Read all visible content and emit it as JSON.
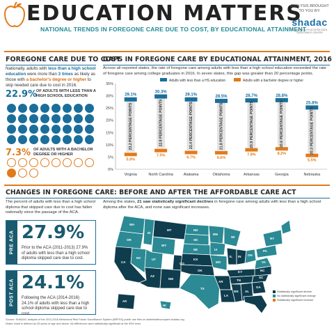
{
  "header": {
    "title": "EDUCATION MATTERS",
    "subtitle": "NATIONAL TRENDS IN FOREGONE CARE DUE TO COST, BY EDUCATIONAL ATTAINMENT",
    "brought_by": "ANALYSIS BROUGHT TO YOU BY:",
    "logo_name": "shadac",
    "logo_tagline": "STATE HEALTH ACCESS DATA ASSISTANCE CENTER"
  },
  "left_panel": {
    "title": "FOREGONE CARE DUE TO COST",
    "text_1": "Nationally, adults with ",
    "text_hl1": "less than a high school education",
    "text_2": " were more than ",
    "text_hl2": "3 times",
    "text_3": " as likely as those with ",
    "text_hl3": "a bachelor's degree or higher",
    "text_4": " to skip needed care due to cost in 2016.",
    "stat_lhs_value": "22.9%",
    "stat_lhs_label": "OF ADULTS WITH LESS THAN A HIGH SCHOOL EDUCATION",
    "stat_ba_value": "7.3%",
    "stat_ba_label": "OF ADULTS WITH A BACHELOR DEGREE OR HIGHER",
    "colors": {
      "blue": "#1b6e9a",
      "orange": "#e07b1c"
    }
  },
  "gaps_panel": {
    "title": "GAPS IN FOREGONE CARE BY EDUCATIONAL ATTAINMENT, 2016",
    "description": "Across all reported states, the rate of foregone care among adults with less than a high school education exceeded the rate of foregone care among college graduates in 2016. In seven states, this gap was greater than 20 percentage points."
  },
  "chart_data": {
    "type": "bar",
    "categories": [
      "Virginia",
      "North Carolina",
      "Alabama",
      "Oklahoma",
      "Arkansas",
      "Georgia",
      "Nebraska"
    ],
    "series": [
      {
        "name": "Adults with less than a HS education",
        "values": [
          29.1,
          30.3,
          29.1,
          28.5,
          28.7,
          28.8,
          25.8
        ],
        "labels": [
          "29.1%",
          "30.3%",
          "29.1%",
          "28.5%",
          "28.7%",
          "28.8%",
          "25.8%"
        ],
        "color": "#1b6e9a"
      },
      {
        "name": "Adults with a bachelor degree or higher",
        "values": [
          5.9,
          7.5,
          6.7,
          6.6,
          7.8,
          8.2,
          5.5
        ],
        "labels": [
          "5.9%",
          "7.5%",
          "6.7%",
          "6.6%",
          "7.8%",
          "8.2%",
          "5.5%"
        ],
        "color": "#e07b1c"
      }
    ],
    "gaps": [
      "23.2 PERCENTAGE POINTS",
      "22.8 PERCENTAGE POINTS",
      "22.4 PERCENTAGE POINTS",
      "21.8 PERCENTAGE POINTS",
      "20.9 PERCENTAGE POINTS",
      "20.6 PERCENTAGE POINTS",
      "20.3 PERCENTAGE POINTS"
    ],
    "yticks": [
      "0%",
      "5%",
      "10%",
      "15%",
      "20%",
      "25%",
      "30%",
      "35%"
    ],
    "ylim": [
      0,
      35
    ],
    "legend_position": "top"
  },
  "changes_panel": {
    "title": "CHANGES IN FOREGONE CARE: BEFORE AND AFTER THE AFFORDABLE CARE ACT",
    "left_text": "The percent of adults with less than a high school diploma that skipped care due to cost has fallen nationally since the passage of the ACA.",
    "pre_label": "PRE ACA",
    "pre_value": "27.9%",
    "pre_desc": "Prior to the ACA (2011-2013) 27.9% of adults with less than a high school diploma skipped care due to cost.",
    "post_label": "POST ACA",
    "post_value": "24.1%",
    "post_desc": "Following the ACA (2014-2016) 24.1% of adults with less than a high school diploma skipped care due to cost.",
    "map_text_1": "Among the states, ",
    "map_text_hl": "21 saw statistically significant declines",
    "map_text_2": " in foregone care among adults with less than a high school diploma after the ACA, and none saw significant increases.",
    "map_legend": [
      "Statistically significant decline",
      "No statistically significant change",
      "Statistically significant increase"
    ],
    "map_colors": {
      "decline": "#0f3d4d",
      "no_change": "#2b8a94",
      "increase": "#e07b1c"
    }
  },
  "footer": {
    "source": "Source: SHADAC analysis of the 2011-2016 Behavioral Risk Factor Surveillance System (BRFSS) public use files on statehealthcompare.shadac.org",
    "notes": "Notes: Adult is defined as 25 years of age and above. All differences were statistically significant at the 95% level."
  }
}
